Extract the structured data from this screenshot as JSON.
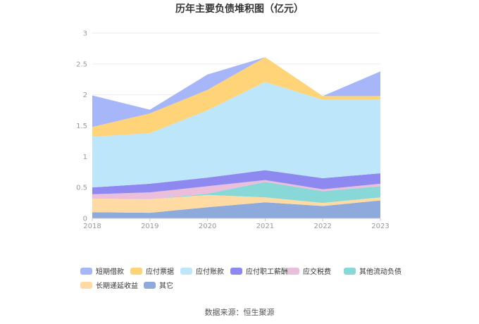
{
  "chart_data": {
    "type": "area",
    "stacked": true,
    "title": "历年主要负债堆积图（亿元）",
    "x": [
      "2018",
      "2019",
      "2020",
      "2021",
      "2022",
      "2023"
    ],
    "ylim": [
      0,
      3
    ],
    "yticks": [
      "0",
      "0.5",
      "1",
      "1.5",
      "2",
      "2.5",
      "3"
    ],
    "grid": true,
    "legend_position": "bottom",
    "series": [
      {
        "name": "其它",
        "color": "#8EA9DB",
        "values": [
          0.1,
          0.09,
          0.18,
          0.26,
          0.2,
          0.29
        ]
      },
      {
        "name": "长期递延收益",
        "color": "#FFDAA3",
        "values": [
          0.22,
          0.22,
          0.2,
          0.08,
          0.05,
          0.05
        ]
      },
      {
        "name": "其他流动负债",
        "color": "#88D8D8",
        "values": [
          0.0,
          0.0,
          0.02,
          0.25,
          0.19,
          0.18
        ]
      },
      {
        "name": "应交税费",
        "color": "#EBBEDC",
        "values": [
          0.07,
          0.11,
          0.12,
          0.03,
          0.03,
          0.04
        ]
      },
      {
        "name": "应付职工薪酬",
        "color": "#8D89F0",
        "values": [
          0.11,
          0.14,
          0.14,
          0.16,
          0.18,
          0.17
        ]
      },
      {
        "name": "应付账款",
        "color": "#BEE6FA",
        "values": [
          0.82,
          0.82,
          1.09,
          1.43,
          1.27,
          1.19
        ]
      },
      {
        "name": "应付票据",
        "color": "#FFD479",
        "values": [
          0.16,
          0.32,
          0.33,
          0.4,
          0.06,
          0.06
        ]
      },
      {
        "name": "短期借款",
        "color": "#A6B6F8",
        "values": [
          0.51,
          0.06,
          0.25,
          0.0,
          0.0,
          0.4
        ]
      }
    ],
    "legend_order": [
      "短期借款",
      "应付票据",
      "应付账款",
      "应付职工薪酬",
      "应交税费",
      "其他流动负债",
      "长期递延收益",
      "其它"
    ]
  },
  "footer": {
    "source": "数据来源：恒生聚源"
  }
}
